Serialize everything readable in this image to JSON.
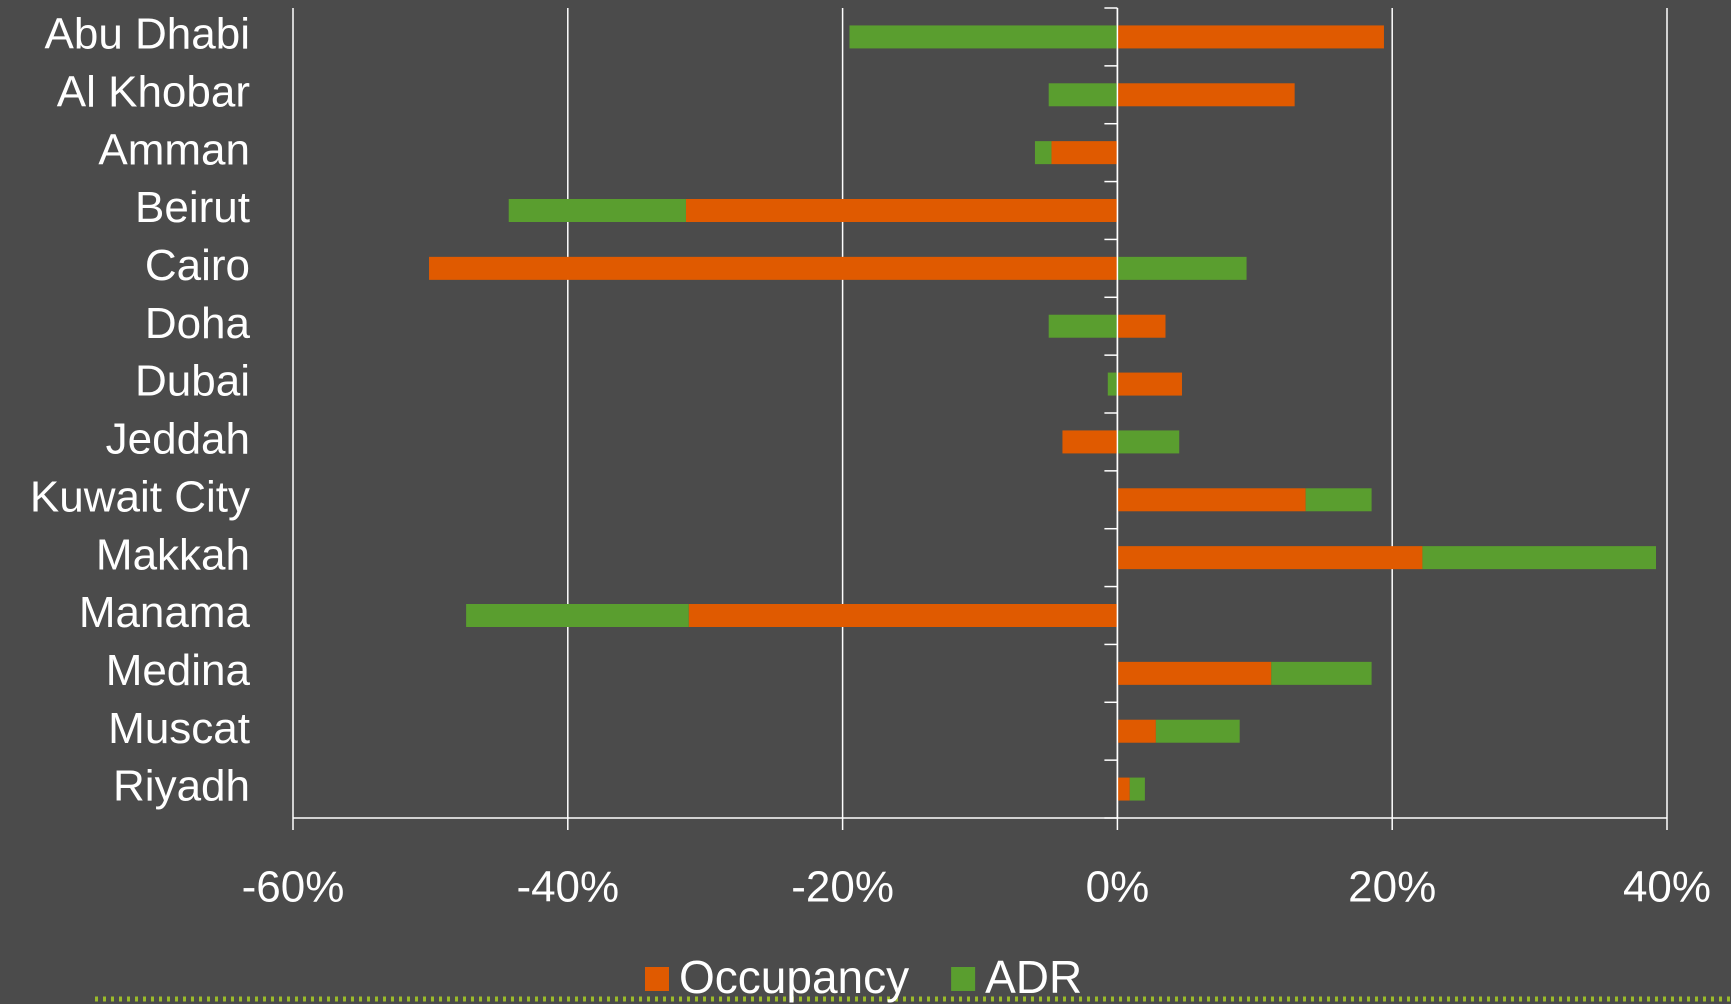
{
  "chart_data": {
    "type": "bar",
    "orientation": "horizontal",
    "stacked": true,
    "categories": [
      "Abu Dhabi",
      "Al Khobar",
      "Amman",
      "Beirut",
      "Cairo",
      "Doha",
      "Dubai",
      "Jeddah",
      "Kuwait City",
      "Makkah",
      "Manama",
      "Medina",
      "Muscat",
      "Riyadh"
    ],
    "series": [
      {
        "name": "Occupancy",
        "color": "#e05a00",
        "values": [
          19.4,
          12.9,
          -4.8,
          -31.4,
          -50.1,
          3.5,
          4.7,
          -4.0,
          13.7,
          22.2,
          -31.2,
          11.2,
          2.8,
          0.9
        ]
      },
      {
        "name": "ADR",
        "color": "#5a9e2f",
        "values": [
          -19.5,
          -5.0,
          -1.2,
          -12.9,
          9.4,
          -5.0,
          -0.7,
          4.5,
          4.8,
          17.0,
          -16.2,
          7.3,
          6.1,
          1.1
        ]
      }
    ],
    "xlim": [
      -60,
      40
    ],
    "xticks": [
      {
        "value": -60,
        "label": "-60%"
      },
      {
        "value": -40,
        "label": "-40%"
      },
      {
        "value": -20,
        "label": "-20%"
      },
      {
        "value": 0,
        "label": "0%"
      },
      {
        "value": 20,
        "label": "20%"
      },
      {
        "value": 40,
        "label": "40%"
      }
    ],
    "grid": true,
    "legend": "bottom"
  }
}
